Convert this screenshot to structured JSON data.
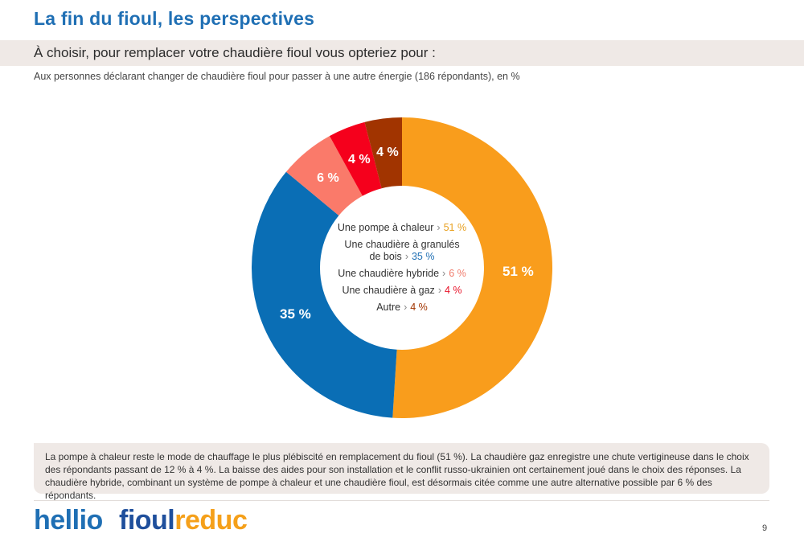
{
  "header": {
    "title": "La fin du fioul, les perspectives",
    "question": "À choisir, pour remplacer votre chaudière fioul vous opteriez pour :",
    "subtitle": "Aux personnes déclarant changer de chaudière fioul pour passer à une autre énergie (186 répondants), en %"
  },
  "chart_data": {
    "type": "pie",
    "variant": "donut",
    "categories": [
      "Une pompe à chaleur",
      "Une chaudière à granulés de bois",
      "Une chaudière hybride",
      "Une chaudière à gaz",
      "Autre"
    ],
    "values": [
      51,
      35,
      6,
      4,
      4
    ],
    "value_labels": [
      "51 %",
      "35 %",
      "6 %",
      "4 %",
      "4 %"
    ],
    "colors": [
      "#f99d1c",
      "#0a6eb5",
      "#fa7a6a",
      "#f5001c",
      "#a13400"
    ],
    "legend_placement": "center",
    "start_angle_deg": 270,
    "direction": "clockwise"
  },
  "legend": {
    "items": [
      {
        "label": "Une pompe à chaleur",
        "value": "51 %",
        "color": "#e8a020"
      },
      {
        "label": "Une chaudière à granulés de bois",
        "label_line1": "Une chaudière à granulés",
        "label_line2": "de bois",
        "value": "35 %",
        "color": "#1f6fb4"
      },
      {
        "label": "Une chaudière hybride",
        "value": "6 %",
        "color": "#f07c6c"
      },
      {
        "label": "Une chaudière à gaz",
        "value": "4 %",
        "color": "#e8142a"
      },
      {
        "label": "Autre",
        "value": "4 %",
        "color": "#a13400"
      }
    ],
    "separator": "›"
  },
  "comment": "La pompe à chaleur reste le mode de chauffage le plus plébiscité en remplacement du fioul (51 %). La chaudière gaz enregistre une chute vertigineuse dans le choix des répondants passant de 12 % à 4 %. La baisse des aides pour son installation et le conflit russo-ukrainien ont certainement joué dans le choix des réponses. La chaudière hybride, combinant un système de pompe à chaleur et une chaudière fioul, est désormais citée comme une autre alternative possible par 6 % des répondants.",
  "footer": {
    "logo_hellio": "hellio",
    "logo_fioul": "fioul",
    "logo_reduc": "reduc",
    "page_number": "9"
  }
}
